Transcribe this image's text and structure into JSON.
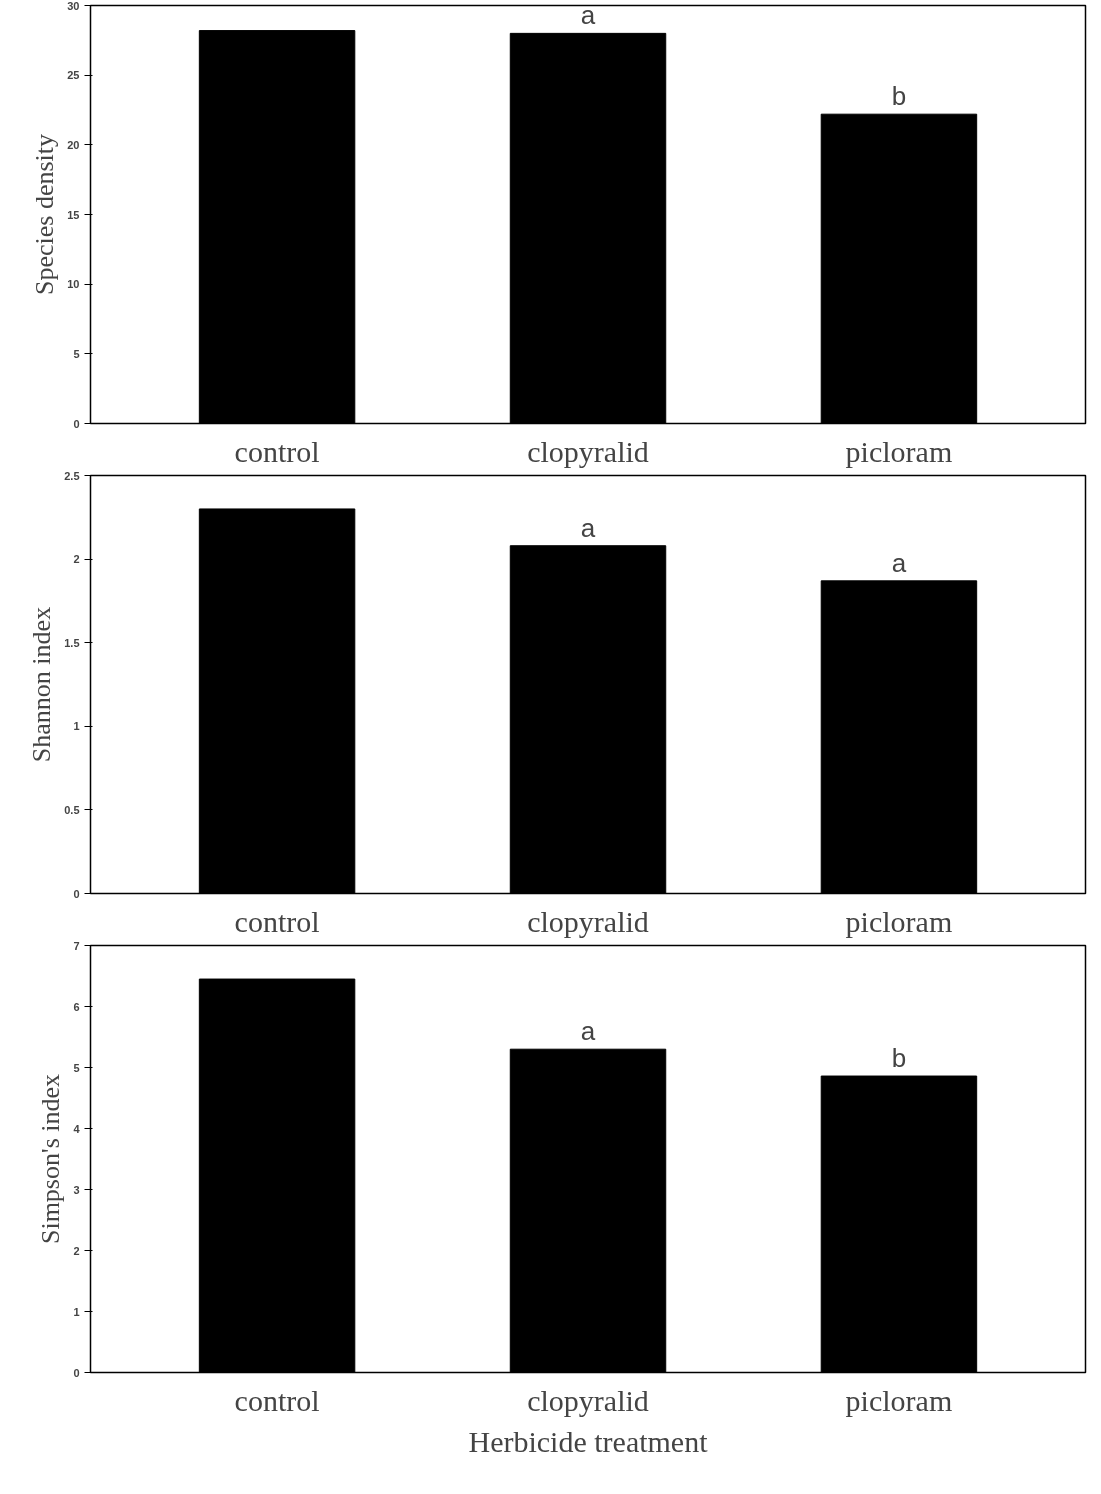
{
  "chart_data": [
    {
      "type": "bar",
      "categories": [
        "control",
        "clopyralid",
        "picloram"
      ],
      "values": [
        28.2,
        28.0,
        22.2
      ],
      "color": "#000000",
      "ylabel": "Species density",
      "ylim": [
        0,
        30
      ],
      "yticks": [
        0,
        5,
        10,
        15,
        20,
        25,
        30
      ],
      "grid": false,
      "annotations": [
        {
          "text": "a",
          "x": "clopyralid",
          "y": 28.0
        },
        {
          "text": "b",
          "x": "picloram",
          "y": 22.2
        }
      ]
    },
    {
      "type": "bar",
      "categories": [
        "control",
        "clopyralid",
        "picloram"
      ],
      "values": [
        2.3,
        2.08,
        1.87
      ],
      "color": "#000000",
      "ylabel": "Shannon index",
      "ylim": [
        0,
        2.5
      ],
      "yticks": [
        0,
        {
          "value": 0.5,
          "label": "0.5"
        },
        1,
        {
          "value": 1.5,
          "label": "1.5"
        },
        2,
        {
          "value": 2.5,
          "label": "2.5"
        }
      ],
      "grid": false,
      "annotations": [
        {
          "text": "a",
          "x": "clopyralid",
          "y": 2.08
        },
        {
          "text": "a",
          "x": "picloram",
          "y": 1.87
        }
      ]
    },
    {
      "type": "bar",
      "categories": [
        "control",
        "clopyralid",
        "picloram"
      ],
      "values": [
        6.45,
        5.3,
        4.86
      ],
      "color": "#000000",
      "ylabel": "Simpson's index",
      "xlabel": "Herbicide treatment",
      "ylim": [
        0,
        7
      ],
      "yticks": [
        0,
        1,
        2,
        3,
        4,
        5,
        6,
        7
      ],
      "grid": false,
      "annotations": [
        {
          "text": "a",
          "x": "clopyralid",
          "y": 5.3
        },
        {
          "text": "b",
          "x": "picloram",
          "y": 4.86
        }
      ]
    }
  ]
}
